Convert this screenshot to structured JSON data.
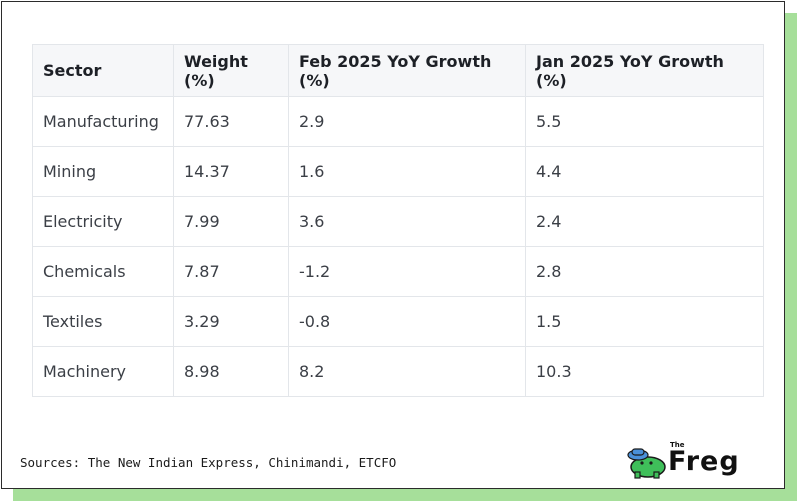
{
  "table": {
    "headers": [
      "Sector",
      "Weight (%)",
      "Feb 2025 YoY Growth (%)",
      "Jan 2025 YoY Growth (%)"
    ],
    "rows": [
      [
        "Manufacturing",
        "77.63",
        "2.9",
        "5.5"
      ],
      [
        "Mining",
        "14.37",
        "1.6",
        "4.4"
      ],
      [
        "Electricity",
        "7.99",
        "3.6",
        "2.4"
      ],
      [
        "Chemicals",
        "7.87",
        "-1.2",
        "2.8"
      ],
      [
        "Textiles",
        "3.29",
        "-0.8",
        "1.5"
      ],
      [
        "Machinery",
        "8.98",
        "8.2",
        "10.3"
      ]
    ]
  },
  "footer": {
    "source": "Sources: The New Indian Express, Chinimandi, ETCFO",
    "logo_small": "The",
    "logo_word": "Freg"
  },
  "colors": {
    "accent_green": "#a6df9a",
    "frog_green": "#3fbf5a",
    "hat_blue": "#4a90d9"
  }
}
